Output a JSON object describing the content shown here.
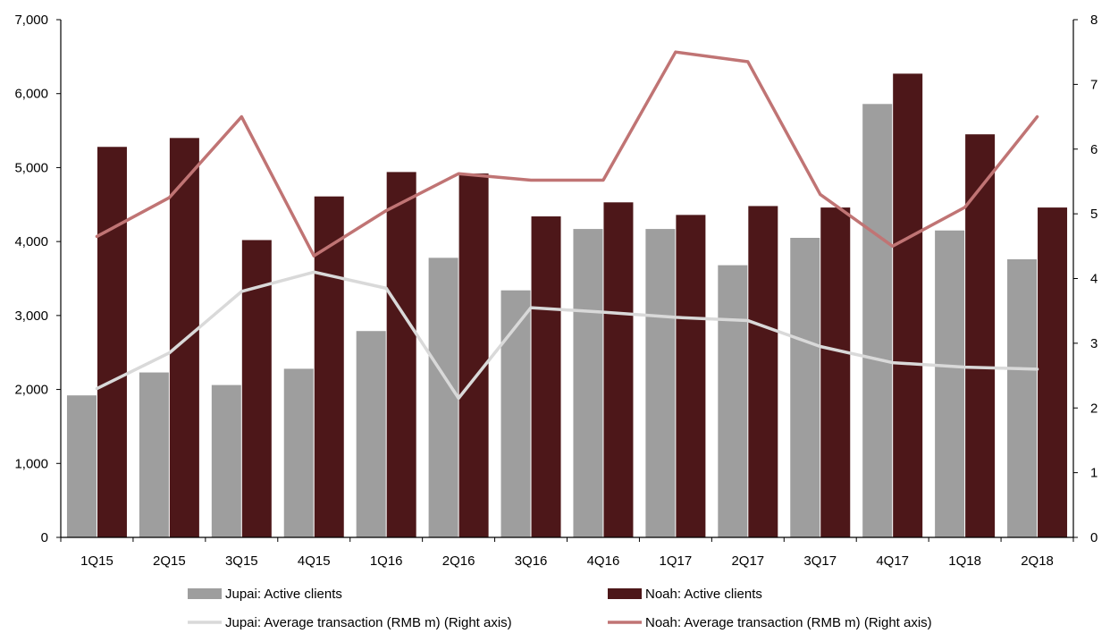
{
  "chart_data": {
    "type": "bar",
    "categories": [
      "1Q15",
      "2Q15",
      "3Q15",
      "4Q15",
      "1Q16",
      "2Q16",
      "3Q16",
      "4Q16",
      "1Q17",
      "2Q17",
      "3Q17",
      "4Q17",
      "1Q18",
      "2Q18"
    ],
    "series": [
      {
        "name": "Jupai: Active clients",
        "type": "bar",
        "axis": "left",
        "color": "#9e9e9e",
        "values": [
          1920,
          2230,
          2060,
          2280,
          2790,
          3780,
          3340,
          4170,
          4170,
          3680,
          4050,
          5860,
          4150,
          3760
        ]
      },
      {
        "name": "Noah: Active clients",
        "type": "bar",
        "axis": "left",
        "color": "#4d1719",
        "values": [
          5280,
          5400,
          4020,
          4610,
          4940,
          4920,
          4340,
          4530,
          4360,
          4480,
          4460,
          6270,
          5450,
          4460
        ]
      },
      {
        "name": "Jupai: Average transaction (RMB m) (Right axis)",
        "type": "line",
        "axis": "right",
        "color": "#d9d9d9",
        "values": [
          2.3,
          2.85,
          3.8,
          4.1,
          3.85,
          2.15,
          3.55,
          3.48,
          3.4,
          3.35,
          2.95,
          2.7,
          2.63,
          2.6
        ]
      },
      {
        "name": "Noah: Average transaction (RMB m) (Right axis)",
        "type": "line",
        "axis": "right",
        "color": "#c07474",
        "values": [
          4.65,
          5.25,
          6.5,
          4.35,
          5.05,
          5.62,
          5.52,
          5.52,
          7.5,
          7.35,
          5.3,
          4.5,
          5.1,
          6.5
        ]
      }
    ],
    "y_left": {
      "lim": [
        0,
        7000
      ],
      "ticks": [
        0,
        1000,
        2000,
        3000,
        4000,
        5000,
        6000,
        7000
      ],
      "tick_labels": [
        "0",
        "1,000",
        "2,000",
        "3,000",
        "4,000",
        "5,000",
        "6,000",
        "7,000"
      ]
    },
    "y_right": {
      "lim": [
        0,
        8
      ],
      "ticks": [
        0,
        1,
        2,
        3,
        4,
        5,
        6,
        7,
        8
      ],
      "tick_labels": [
        "0",
        "1",
        "2",
        "3",
        "4",
        "5",
        "6",
        "7",
        "8"
      ]
    },
    "grid": false,
    "legend_position": "bottom"
  }
}
